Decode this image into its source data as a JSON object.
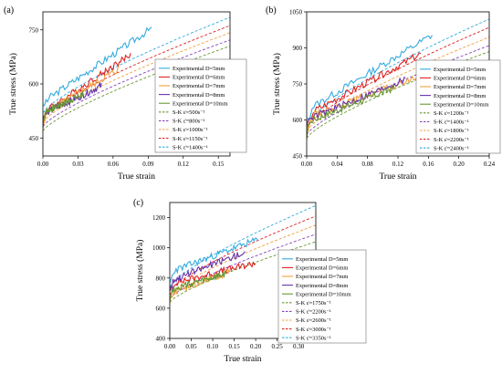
{
  "chart_data": [
    {
      "panel": "(a)",
      "type": "line",
      "xlabel": "True strain",
      "ylabel": "True stress (MPa)",
      "xlim": [
        0,
        0.16
      ],
      "ylim": [
        400,
        800
      ],
      "xticks": [
        "0.00",
        "0.03",
        "0.06",
        "0.09",
        "0.12",
        "0.15"
      ],
      "yticks": [
        "450",
        "600",
        "750"
      ],
      "legend_position": "bottom-right",
      "experimental": [
        {
          "name": "Experimental D=5mm",
          "color": "#33aadd",
          "x_end": 0.093,
          "base": 550,
          "slope": 2200
        },
        {
          "name": "Experimental D=6mm",
          "color": "#dd2222",
          "x_end": 0.075,
          "base": 520,
          "slope": 2150
        },
        {
          "name": "Experimental D=7mm",
          "color": "#f0a040",
          "x_end": 0.065,
          "base": 515,
          "slope": 1950
        },
        {
          "name": "Experimental D=8mm",
          "color": "#6633aa",
          "x_end": 0.05,
          "base": 515,
          "slope": 1600
        },
        {
          "name": "Experimental D=10mm",
          "color": "#669933",
          "x_end": 0.035,
          "base": 520,
          "slope": 1500
        }
      ],
      "models": [
        {
          "name": "S-K ε̇=500s⁻¹",
          "color": "#669933",
          "y0": 470,
          "y1": 705
        },
        {
          "name": "S-K ε̇=800s⁻¹",
          "color": "#8844bb",
          "y0": 482,
          "y1": 722
        },
        {
          "name": "S-K ε̇=1000s⁻¹",
          "color": "#f0a040",
          "y0": 494,
          "y1": 742
        },
        {
          "name": "S-K ε̇=1150s⁻¹",
          "color": "#dd2222",
          "y0": 506,
          "y1": 762
        },
        {
          "name": "S-K ε̇=1400s⁻¹",
          "color": "#33aadd",
          "y0": 520,
          "y1": 785
        }
      ]
    },
    {
      "panel": "(b)",
      "type": "line",
      "xlabel": "True strain",
      "ylabel": "True stress (MPa)",
      "xlim": [
        0,
        0.24
      ],
      "ylim": [
        450,
        1050
      ],
      "xticks": [
        "0.00",
        "0.04",
        "0.08",
        "0.12",
        "0.16",
        "0.20",
        "0.24"
      ],
      "yticks": [
        "450",
        "600",
        "750",
        "900",
        "1050"
      ],
      "legend_position": "bottom-right",
      "experimental": [
        {
          "name": "Experimental D=5mm",
          "color": "#33aadd",
          "x_end": 0.165,
          "base": 640,
          "slope": 1900
        },
        {
          "name": "Experimental D=6mm",
          "color": "#dd2222",
          "x_end": 0.15,
          "base": 620,
          "slope": 1700
        },
        {
          "name": "Experimental D=7mm",
          "color": "#f0a040",
          "x_end": 0.145,
          "base": 610,
          "slope": 1150
        },
        {
          "name": "Experimental D=8mm",
          "color": "#6633aa",
          "x_end": 0.13,
          "base": 600,
          "slope": 1300
        },
        {
          "name": "Experimental D=10mm",
          "color": "#669933",
          "x_end": 0.115,
          "base": 590,
          "slope": 1250
        }
      ],
      "models": [
        {
          "name": "S-K ε̇=1200s⁻¹",
          "color": "#669933",
          "y0": 525,
          "y1": 885
        },
        {
          "name": "S-K ε̇=1400s⁻¹",
          "color": "#8844bb",
          "y0": 540,
          "y1": 910
        },
        {
          "name": "S-K ε̇=1800s⁻¹",
          "color": "#f0a040",
          "y0": 555,
          "y1": 945
        },
        {
          "name": "S-K ε̇=2200s⁻¹",
          "color": "#dd2222",
          "y0": 570,
          "y1": 985
        },
        {
          "name": "S-K ε̇=2400s⁻¹",
          "color": "#33aadd",
          "y0": 585,
          "y1": 1020
        }
      ]
    },
    {
      "panel": "(c)",
      "type": "line",
      "xlabel": "True strain",
      "ylabel": "True stress (MPa)",
      "xlim": [
        0,
        0.34
      ],
      "ylim": [
        400,
        1300
      ],
      "xticks": [
        "0.00",
        "0.05",
        "0.10",
        "0.15",
        "0.20",
        "0.25",
        "0.30"
      ],
      "yticks": [
        "400",
        "600",
        "800",
        "1000",
        "1200"
      ],
      "legend_position": "right",
      "experimental": [
        {
          "name": "Experimental D=5mm",
          "color": "#33aadd",
          "x_end": 0.205,
          "base": 840,
          "slope": 1050
        },
        {
          "name": "Experimental D=6mm",
          "color": "#dd2222",
          "x_end": 0.2,
          "base": 760,
          "slope": 700
        },
        {
          "name": "Experimental D=7mm",
          "color": "#f0a040",
          "x_end": 0.14,
          "base": 700,
          "slope": 1000
        },
        {
          "name": "Experimental D=8mm",
          "color": "#6633aa",
          "x_end": 0.175,
          "base": 780,
          "slope": 1100
        },
        {
          "name": "Experimental D=10mm",
          "color": "#669933",
          "x_end": 0.13,
          "base": 720,
          "slope": 800
        }
      ],
      "models": [
        {
          "name": "S-K ε̇=1750s⁻¹",
          "color": "#669933",
          "y0": 640,
          "y1": 1040
        },
        {
          "name": "S-K ε̇=2200s⁻¹",
          "color": "#8844bb",
          "y0": 665,
          "y1": 1090
        },
        {
          "name": "S-K ε̇=2600s⁻¹",
          "color": "#f0a040",
          "y0": 690,
          "y1": 1150
        },
        {
          "name": "S-K ε̇=3000s⁻¹",
          "color": "#dd2222",
          "y0": 715,
          "y1": 1210
        },
        {
          "name": "S-K ε̇=3350s⁻¹",
          "color": "#33aadd",
          "y0": 745,
          "y1": 1280
        }
      ]
    }
  ]
}
